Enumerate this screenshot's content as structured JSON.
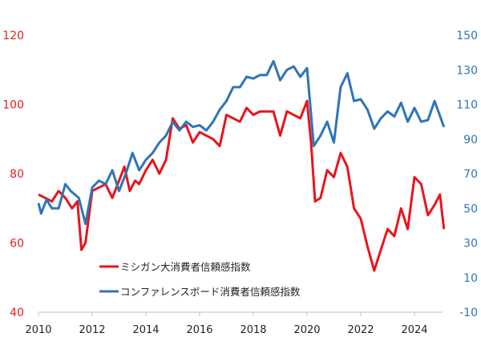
{
  "chart_data": {
    "type": "line",
    "title": "",
    "xlabel": "",
    "x_ticks": [
      "2010",
      "2012",
      "2014",
      "2016",
      "2018",
      "2020",
      "2022",
      "2024"
    ],
    "xlim": [
      2010,
      2025.3
    ],
    "y_left": {
      "ticks": [
        "40",
        "60",
        "80",
        "100",
        "120"
      ],
      "ylim": [
        40,
        120
      ],
      "color": "#e8141c"
    },
    "y_right": {
      "ticks": [
        "-10",
        "10",
        "30",
        "50",
        "70",
        "90",
        "110",
        "130",
        "150"
      ],
      "ylim": [
        -10,
        150
      ],
      "color": "#2e75b6"
    },
    "grid": false,
    "legend_placement": "bottom-center",
    "series": [
      {
        "name": "ミシガン大消費者信頼感指数",
        "axis": "left",
        "color": "#e8141c",
        "x": [
          2010.0,
          2010.25,
          2010.5,
          2010.75,
          2011.0,
          2011.25,
          2011.45,
          2011.6,
          2011.75,
          2012.0,
          2012.25,
          2012.5,
          2012.75,
          2013.0,
          2013.2,
          2013.4,
          2013.6,
          2013.75,
          2014.0,
          2014.25,
          2014.5,
          2014.75,
          2015.0,
          2015.25,
          2015.5,
          2015.75,
          2016.0,
          2016.25,
          2016.5,
          2016.75,
          2017.0,
          2017.25,
          2017.5,
          2017.75,
          2018.0,
          2018.25,
          2018.5,
          2018.75,
          2019.0,
          2019.25,
          2019.5,
          2019.75,
          2020.0,
          2020.15,
          2020.3,
          2020.5,
          2020.75,
          2021.0,
          2021.25,
          2021.5,
          2021.75,
          2022.0,
          2022.25,
          2022.5,
          2022.75,
          2023.0,
          2023.25,
          2023.5,
          2023.75,
          2024.0,
          2024.25,
          2024.5,
          2024.75,
          2024.95,
          2025.1
        ],
        "values": [
          74,
          73,
          72,
          75,
          73,
          70,
          72,
          58,
          60,
          75,
          76,
          77,
          73,
          78,
          82,
          75,
          78,
          77,
          81,
          84,
          80,
          84,
          96,
          93,
          94,
          89,
          92,
          91,
          90,
          88,
          97,
          96,
          95,
          99,
          97,
          98,
          98,
          98,
          91,
          98,
          97,
          96,
          101,
          89,
          72,
          73,
          81,
          79,
          86,
          82,
          70,
          67,
          59,
          52,
          58,
          64,
          62,
          70,
          64,
          79,
          77,
          68,
          71,
          74,
          64
        ]
      },
      {
        "name": "コンファレンスボード消費者信頼感指数",
        "axis": "right",
        "color": "#2e75b6",
        "x": [
          2010.0,
          2010.1,
          2010.3,
          2010.5,
          2010.75,
          2011.0,
          2011.2,
          2011.5,
          2011.75,
          2012.0,
          2012.25,
          2012.5,
          2012.75,
          2013.0,
          2013.25,
          2013.5,
          2013.75,
          2014.0,
          2014.25,
          2014.5,
          2014.75,
          2015.0,
          2015.25,
          2015.5,
          2015.75,
          2016.0,
          2016.25,
          2016.5,
          2016.75,
          2017.0,
          2017.25,
          2017.5,
          2017.75,
          2018.0,
          2018.25,
          2018.5,
          2018.75,
          2019.0,
          2019.25,
          2019.5,
          2019.75,
          2020.0,
          2020.25,
          2020.5,
          2020.75,
          2021.0,
          2021.25,
          2021.5,
          2021.75,
          2022.0,
          2022.25,
          2022.5,
          2022.75,
          2023.0,
          2023.25,
          2023.5,
          2023.75,
          2024.0,
          2024.25,
          2024.5,
          2024.75,
          2025.1
        ],
        "values": [
          53,
          47,
          55,
          50,
          50,
          64,
          60,
          56,
          41,
          62,
          66,
          64,
          72,
          60,
          70,
          82,
          72,
          78,
          82,
          88,
          92,
          100,
          95,
          100,
          97,
          98,
          95,
          100,
          107,
          112,
          120,
          120,
          126,
          125,
          127,
          127,
          135,
          124,
          130,
          132,
          126,
          131,
          86,
          92,
          100,
          88,
          120,
          128,
          112,
          113,
          107,
          96,
          102,
          106,
          103,
          111,
          100,
          108,
          100,
          101,
          112,
          97
        ]
      }
    ]
  }
}
